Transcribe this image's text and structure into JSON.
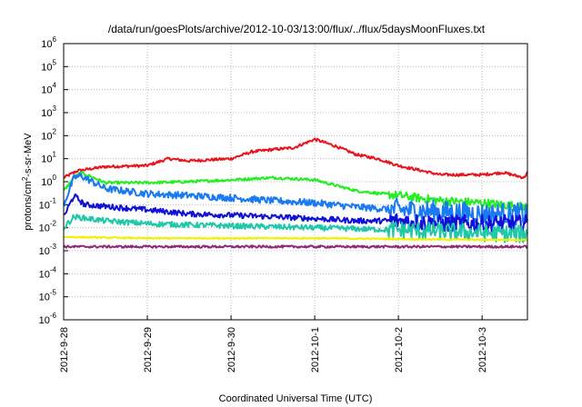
{
  "chart_data": {
    "type": "line",
    "title": "/data/run/goesPlots/archive/2012-10-03/13:00/flux/../flux/5daysMoonFluxes.txt",
    "xlabel": "Coordinated Universal Time (UTC)",
    "ylabel": "protons/cm2-s-sr-MeV",
    "yscale": "log",
    "ylim": [
      1e-06,
      1000000.0
    ],
    "xlim": [
      "2012-09-28T00:00",
      "2012-10-03T13:00"
    ],
    "grid": true,
    "y_ticks": [
      {
        "value": 1000000.0,
        "base": "10",
        "exp": "6"
      },
      {
        "value": 100000.0,
        "base": "10",
        "exp": "5"
      },
      {
        "value": 10000.0,
        "base": "10",
        "exp": "4"
      },
      {
        "value": 1000.0,
        "base": "10",
        "exp": "3"
      },
      {
        "value": 100.0,
        "base": "10",
        "exp": "2"
      },
      {
        "value": 10.0,
        "base": "10",
        "exp": "1"
      },
      {
        "value": 1,
        "base": "10",
        "exp": "0"
      },
      {
        "value": 0.1,
        "base": "10",
        "exp": "-1"
      },
      {
        "value": 0.01,
        "base": "10",
        "exp": "-2"
      },
      {
        "value": 0.001,
        "base": "10",
        "exp": "-3"
      },
      {
        "value": 0.0001,
        "base": "10",
        "exp": "-4"
      },
      {
        "value": 1e-05,
        "base": "10",
        "exp": "-5"
      },
      {
        "value": 1e-06,
        "base": "10",
        "exp": "-6"
      }
    ],
    "x_ticks": [
      {
        "value": "2012-09-28T00:00",
        "label": "2012-9-28"
      },
      {
        "value": "2012-09-29T00:00",
        "label": "2012-9-29"
      },
      {
        "value": "2012-09-30T00:00",
        "label": "2012-9-30"
      },
      {
        "value": "2012-10-01T00:00",
        "label": "2012-10-1"
      },
      {
        "value": "2012-10-02T00:00",
        "label": "2012-10-2"
      },
      {
        "value": "2012-10-03T00:00",
        "label": "2012-10-3"
      }
    ],
    "series": [
      {
        "color": "#e8141e",
        "noise": 0.06,
        "values": [
          [
            "2012-09-28T00:00",
            1.5
          ],
          [
            "2012-09-28T04:00",
            3
          ],
          [
            "2012-09-28T12:00",
            4.5
          ],
          [
            "2012-09-29T00:00",
            5
          ],
          [
            "2012-09-29T06:00",
            10
          ],
          [
            "2012-09-29T12:00",
            8
          ],
          [
            "2012-09-30T00:00",
            10
          ],
          [
            "2012-09-30T06:00",
            20
          ],
          [
            "2012-09-30T12:00",
            25
          ],
          [
            "2012-09-30T18:00",
            30
          ],
          [
            "2012-10-01T00:00",
            70
          ],
          [
            "2012-10-01T06:00",
            35
          ],
          [
            "2012-10-01T12:00",
            15
          ],
          [
            "2012-10-01T18:00",
            10
          ],
          [
            "2012-10-02T00:00",
            5
          ],
          [
            "2012-10-02T12:00",
            2
          ],
          [
            "2012-10-03T00:00",
            2
          ],
          [
            "2012-10-03T06:00",
            2.5
          ],
          [
            "2012-10-03T12:00",
            1.5
          ],
          [
            "2012-10-03T13:00",
            2.5
          ]
        ]
      },
      {
        "color": "#22ee22",
        "noise": 0.06,
        "values": [
          [
            "2012-09-28T00:00",
            0.4
          ],
          [
            "2012-09-28T03:00",
            1.5
          ],
          [
            "2012-09-28T05:00",
            2.5
          ],
          [
            "2012-09-28T12:00",
            0.9
          ],
          [
            "2012-09-29T00:00",
            0.9
          ],
          [
            "2012-09-29T12:00",
            1.0
          ],
          [
            "2012-09-30T00:00",
            1.2
          ],
          [
            "2012-09-30T12:00",
            1.5
          ],
          [
            "2012-10-01T00:00",
            1.2
          ],
          [
            "2012-10-01T12:00",
            0.4
          ],
          [
            "2012-10-02T00:00",
            0.25
          ],
          [
            "2012-10-02T12:00",
            0.15
          ],
          [
            "2012-10-03T00:00",
            0.12
          ],
          [
            "2012-10-03T13:00",
            0.08
          ]
        ]
      },
      {
        "color": "#1a7af0",
        "noise": 0.15,
        "values": [
          [
            "2012-09-28T00:00",
            0.1
          ],
          [
            "2012-09-28T03:00",
            1.5
          ],
          [
            "2012-09-28T05:00",
            1.8
          ],
          [
            "2012-09-28T12:00",
            0.5
          ],
          [
            "2012-09-29T00:00",
            0.3
          ],
          [
            "2012-09-29T12:00",
            0.25
          ],
          [
            "2012-09-30T00:00",
            0.2
          ],
          [
            "2012-09-30T12:00",
            0.15
          ],
          [
            "2012-10-01T00:00",
            0.12
          ],
          [
            "2012-10-01T12:00",
            0.08
          ],
          [
            "2012-10-02T00:00",
            0.06
          ],
          [
            "2012-10-02T12:00",
            0.05
          ],
          [
            "2012-10-03T00:00",
            0.04
          ],
          [
            "2012-10-03T13:00",
            0.04
          ]
        ]
      },
      {
        "color": "#1010d8",
        "noise": 0.12,
        "values": [
          [
            "2012-09-28T00:00",
            0.03
          ],
          [
            "2012-09-28T03:00",
            0.25
          ],
          [
            "2012-09-28T06:00",
            0.1
          ],
          [
            "2012-09-29T00:00",
            0.06
          ],
          [
            "2012-09-29T12:00",
            0.04
          ],
          [
            "2012-09-30T00:00",
            0.035
          ],
          [
            "2012-09-30T12:00",
            0.03
          ],
          [
            "2012-10-01T00:00",
            0.025
          ],
          [
            "2012-10-01T12:00",
            0.02
          ],
          [
            "2012-10-02T00:00",
            0.02
          ],
          [
            "2012-10-02T12:00",
            0.015
          ],
          [
            "2012-10-03T00:00",
            0.015
          ],
          [
            "2012-10-03T13:00",
            0.015
          ]
        ]
      },
      {
        "color": "#1ec8a8",
        "noise": 0.12,
        "values": [
          [
            "2012-09-28T00:00",
            0.01
          ],
          [
            "2012-09-28T03:00",
            0.03
          ],
          [
            "2012-09-28T12:00",
            0.02
          ],
          [
            "2012-09-29T00:00",
            0.015
          ],
          [
            "2012-09-30T00:00",
            0.012
          ],
          [
            "2012-10-01T00:00",
            0.01
          ],
          [
            "2012-10-02T00:00",
            0.008
          ],
          [
            "2012-10-03T00:00",
            0.006
          ],
          [
            "2012-10-03T13:00",
            0.005
          ]
        ]
      },
      {
        "color": "#f0f000",
        "noise": 0.03,
        "values": [
          [
            "2012-09-28T00:00",
            0.004
          ],
          [
            "2012-09-29T00:00",
            0.0035
          ],
          [
            "2012-10-01T00:00",
            0.0035
          ],
          [
            "2012-10-03T00:00",
            0.003
          ],
          [
            "2012-10-03T13:00",
            0.003
          ]
        ]
      },
      {
        "color": "#8e2a78",
        "noise": 0.05,
        "values": [
          [
            "2012-09-28T00:00",
            0.0015
          ],
          [
            "2012-10-03T13:00",
            0.0015
          ]
        ]
      }
    ]
  }
}
